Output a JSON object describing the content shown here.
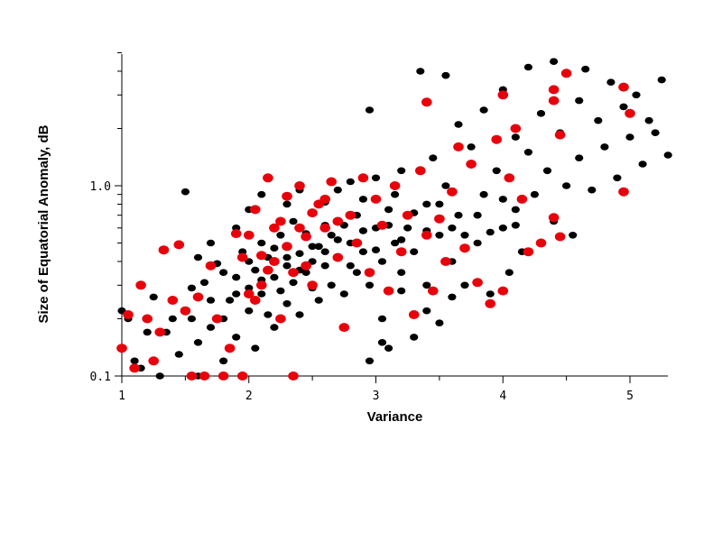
{
  "chart_data": {
    "type": "scatter",
    "xlabel": "Variance",
    "ylabel": "Size of Equatorial Anomaly, dB",
    "xlim": [
      1,
      5.3
    ],
    "ylim": [
      0.1,
      5.0
    ],
    "y_scale": "log",
    "x_ticks": [
      1,
      2,
      3,
      4,
      5
    ],
    "y_ticks": [
      0.1,
      1.0
    ],
    "x_tick_labels": [
      "1",
      "2",
      "3",
      "4",
      "5"
    ],
    "y_tick_labels": [
      "0.1",
      "1.0"
    ],
    "grid": false,
    "series": [
      {
        "color": "#000000",
        "points": [
          [
            1.0,
            0.22
          ],
          [
            1.05,
            0.2
          ],
          [
            1.1,
            0.12
          ],
          [
            1.15,
            0.11
          ],
          [
            1.2,
            0.17
          ],
          [
            1.25,
            0.26
          ],
          [
            1.3,
            0.1
          ],
          [
            1.35,
            0.17
          ],
          [
            1.4,
            0.2
          ],
          [
            1.45,
            0.13
          ],
          [
            1.5,
            0.22
          ],
          [
            1.55,
            0.29
          ],
          [
            1.55,
            0.2
          ],
          [
            1.6,
            0.15
          ],
          [
            1.6,
            0.1
          ],
          [
            1.65,
            0.31
          ],
          [
            1.7,
            0.18
          ],
          [
            1.7,
            0.25
          ],
          [
            1.75,
            0.39
          ],
          [
            1.8,
            0.12
          ],
          [
            1.8,
            0.2
          ],
          [
            1.85,
            0.25
          ],
          [
            1.9,
            0.33
          ],
          [
            1.9,
            0.16
          ],
          [
            1.95,
            0.45
          ],
          [
            2.0,
            0.29
          ],
          [
            2.0,
            0.22
          ],
          [
            2.05,
            0.36
          ],
          [
            2.05,
            0.14
          ],
          [
            2.1,
            0.5
          ],
          [
            2.1,
            0.27
          ],
          [
            2.15,
            0.21
          ],
          [
            2.15,
            0.42
          ],
          [
            2.2,
            0.33
          ],
          [
            2.2,
            0.18
          ],
          [
            2.25,
            0.55
          ],
          [
            2.25,
            0.28
          ],
          [
            2.3,
            0.38
          ],
          [
            2.3,
            0.24
          ],
          [
            2.35,
            0.65
          ],
          [
            2.35,
            0.31
          ],
          [
            2.4,
            0.44
          ],
          [
            2.4,
            0.21
          ],
          [
            2.45,
            0.56
          ],
          [
            2.45,
            0.35
          ],
          [
            2.5,
            0.72
          ],
          [
            2.5,
            0.29
          ],
          [
            2.55,
            0.48
          ],
          [
            2.55,
            0.25
          ],
          [
            2.6,
            0.82
          ],
          [
            2.6,
            0.38
          ],
          [
            2.65,
            0.55
          ],
          [
            2.65,
            0.3
          ],
          [
            2.7,
            0.95
          ],
          [
            2.7,
            0.42
          ],
          [
            2.75,
            0.62
          ],
          [
            2.75,
            0.27
          ],
          [
            2.8,
            1.05
          ],
          [
            2.8,
            0.5
          ],
          [
            2.85,
            0.35
          ],
          [
            2.85,
            0.7
          ],
          [
            2.9,
            0.45
          ],
          [
            2.9,
            0.85
          ],
          [
            2.95,
            0.3
          ],
          [
            2.95,
            2.5
          ],
          [
            3.0,
            0.6
          ],
          [
            3.0,
            1.1
          ],
          [
            3.05,
            0.4
          ],
          [
            3.05,
            0.2
          ],
          [
            3.1,
            0.75
          ],
          [
            3.1,
            0.14
          ],
          [
            3.15,
            0.5
          ],
          [
            3.15,
            0.9
          ],
          [
            3.2,
            0.35
          ],
          [
            3.2,
            1.2
          ],
          [
            3.25,
            0.6
          ],
          [
            3.3,
            0.45
          ],
          [
            3.3,
            0.16
          ],
          [
            3.35,
            4.0
          ],
          [
            3.4,
            0.8
          ],
          [
            3.4,
            0.3
          ],
          [
            3.45,
            1.4
          ],
          [
            3.5,
            0.55
          ],
          [
            3.5,
            0.19
          ],
          [
            3.55,
            1.0
          ],
          [
            3.55,
            3.8
          ],
          [
            3.6,
            0.4
          ],
          [
            3.65,
            0.7
          ],
          [
            3.65,
            2.1
          ],
          [
            3.7,
            0.3
          ],
          [
            3.75,
            1.6
          ],
          [
            3.8,
            0.5
          ],
          [
            3.85,
            0.9
          ],
          [
            3.85,
            2.5
          ],
          [
            3.9,
            0.27
          ],
          [
            3.95,
            1.2
          ],
          [
            4.0,
            0.6
          ],
          [
            4.0,
            3.2
          ],
          [
            4.05,
            0.35
          ],
          [
            4.1,
            1.8
          ],
          [
            4.1,
            0.75
          ],
          [
            4.15,
            0.45
          ],
          [
            4.2,
            1.5
          ],
          [
            4.2,
            4.2
          ],
          [
            4.25,
            0.9
          ],
          [
            4.3,
            0.5
          ],
          [
            4.3,
            2.4
          ],
          [
            4.35,
            1.2
          ],
          [
            4.4,
            4.5
          ],
          [
            4.4,
            0.65
          ],
          [
            4.45,
            1.9
          ],
          [
            4.5,
            1.0
          ],
          [
            4.5,
            3.9
          ],
          [
            4.55,
            0.55
          ],
          [
            4.6,
            2.8
          ],
          [
            4.6,
            1.4
          ],
          [
            4.65,
            4.1
          ],
          [
            4.7,
            0.95
          ],
          [
            4.75,
            2.2
          ],
          [
            4.8,
            1.6
          ],
          [
            4.85,
            3.5
          ],
          [
            4.9,
            1.1
          ],
          [
            4.95,
            2.6
          ],
          [
            5.0,
            1.8
          ],
          [
            5.05,
            3.0
          ],
          [
            5.1,
            1.3
          ],
          [
            5.15,
            2.2
          ],
          [
            5.2,
            1.9
          ],
          [
            5.25,
            3.6
          ],
          [
            5.3,
            1.45
          ],
          [
            1.5,
            0.93
          ],
          [
            1.7,
            0.5
          ],
          [
            1.9,
            0.6
          ],
          [
            2.0,
            0.75
          ],
          [
            2.1,
            0.9
          ],
          [
            2.2,
            0.6
          ],
          [
            2.3,
            0.8
          ],
          [
            2.4,
            0.95
          ],
          [
            2.5,
            0.48
          ],
          [
            2.6,
            0.62
          ],
          [
            1.6,
            0.42
          ],
          [
            1.8,
            0.35
          ],
          [
            1.9,
            0.27
          ],
          [
            2.0,
            0.4
          ],
          [
            2.1,
            0.32
          ],
          [
            2.2,
            0.47
          ],
          [
            2.3,
            0.42
          ],
          [
            2.4,
            0.36
          ],
          [
            2.5,
            0.4
          ],
          [
            2.6,
            0.45
          ],
          [
            2.7,
            0.52
          ],
          [
            2.8,
            0.38
          ],
          [
            2.9,
            0.58
          ],
          [
            3.0,
            0.46
          ],
          [
            3.1,
            0.62
          ],
          [
            3.2,
            0.52
          ],
          [
            3.3,
            0.72
          ],
          [
            3.4,
            0.58
          ],
          [
            3.5,
            0.8
          ],
          [
            3.6,
            0.6
          ],
          [
            3.7,
            0.55
          ],
          [
            3.8,
            0.7
          ],
          [
            3.9,
            0.57
          ],
          [
            4.0,
            0.85
          ],
          [
            4.1,
            0.62
          ],
          [
            3.2,
            0.28
          ],
          [
            3.4,
            0.22
          ],
          [
            3.6,
            0.26
          ],
          [
            2.95,
            0.12
          ],
          [
            3.05,
            0.15
          ]
        ]
      },
      {
        "color": "#e8000b",
        "points": [
          [
            1.0,
            0.14
          ],
          [
            1.05,
            0.21
          ],
          [
            1.1,
            0.11
          ],
          [
            1.15,
            0.3
          ],
          [
            1.2,
            0.2
          ],
          [
            1.25,
            0.12
          ],
          [
            1.3,
            0.17
          ],
          [
            1.33,
            0.46
          ],
          [
            1.4,
            0.25
          ],
          [
            1.45,
            0.49
          ],
          [
            1.5,
            0.22
          ],
          [
            1.55,
            0.1
          ],
          [
            1.6,
            0.26
          ],
          [
            1.65,
            0.1
          ],
          [
            1.7,
            0.38
          ],
          [
            1.75,
            0.2
          ],
          [
            1.8,
            0.1
          ],
          [
            1.85,
            0.14
          ],
          [
            1.9,
            0.56
          ],
          [
            1.95,
            0.1
          ],
          [
            2.0,
            0.27
          ],
          [
            2.05,
            0.75
          ],
          [
            2.1,
            0.43
          ],
          [
            2.15,
            1.1
          ],
          [
            2.2,
            0.6
          ],
          [
            2.25,
            0.2
          ],
          [
            2.3,
            0.88
          ],
          [
            2.35,
            0.1
          ],
          [
            2.35,
            0.35
          ],
          [
            2.4,
            1.0
          ],
          [
            2.45,
            0.54
          ],
          [
            2.5,
            0.3
          ],
          [
            2.55,
            0.8
          ],
          [
            2.6,
            0.6
          ],
          [
            2.65,
            1.05
          ],
          [
            2.7,
            0.42
          ],
          [
            2.75,
            0.18
          ],
          [
            2.8,
            0.7
          ],
          [
            2.85,
            0.5
          ],
          [
            2.9,
            1.1
          ],
          [
            2.95,
            0.35
          ],
          [
            3.0,
            0.85
          ],
          [
            3.05,
            0.62
          ],
          [
            3.1,
            0.28
          ],
          [
            3.15,
            1.0
          ],
          [
            3.2,
            0.45
          ],
          [
            3.25,
            0.7
          ],
          [
            3.3,
            0.21
          ],
          [
            3.35,
            1.2
          ],
          [
            3.4,
            0.55
          ],
          [
            3.4,
            2.75
          ],
          [
            3.45,
            0.28
          ],
          [
            3.5,
            0.67
          ],
          [
            3.55,
            0.4
          ],
          [
            3.6,
            0.93
          ],
          [
            3.65,
            1.6
          ],
          [
            3.7,
            0.47
          ],
          [
            3.75,
            1.3
          ],
          [
            3.8,
            0.31
          ],
          [
            3.9,
            0.24
          ],
          [
            3.95,
            1.75
          ],
          [
            4.0,
            0.28
          ],
          [
            4.0,
            3.0
          ],
          [
            4.05,
            1.1
          ],
          [
            4.1,
            2.0
          ],
          [
            4.15,
            0.85
          ],
          [
            4.2,
            0.45
          ],
          [
            4.3,
            0.5
          ],
          [
            4.4,
            0.68
          ],
          [
            4.45,
            0.54
          ],
          [
            4.4,
            3.2
          ],
          [
            4.4,
            2.8
          ],
          [
            4.45,
            1.85
          ],
          [
            4.5,
            3.9
          ],
          [
            4.95,
            0.93
          ],
          [
            4.95,
            3.3
          ],
          [
            5.0,
            2.4
          ],
          [
            2.2,
            0.4
          ],
          [
            2.1,
            0.3
          ],
          [
            2.0,
            0.55
          ],
          [
            2.3,
            0.48
          ],
          [
            2.25,
            0.65
          ],
          [
            2.4,
            0.6
          ],
          [
            2.15,
            0.36
          ],
          [
            1.95,
            0.42
          ],
          [
            2.05,
            0.25
          ],
          [
            2.5,
            0.72
          ],
          [
            2.6,
            0.85
          ],
          [
            2.7,
            0.65
          ],
          [
            2.45,
            0.38
          ]
        ]
      }
    ]
  }
}
